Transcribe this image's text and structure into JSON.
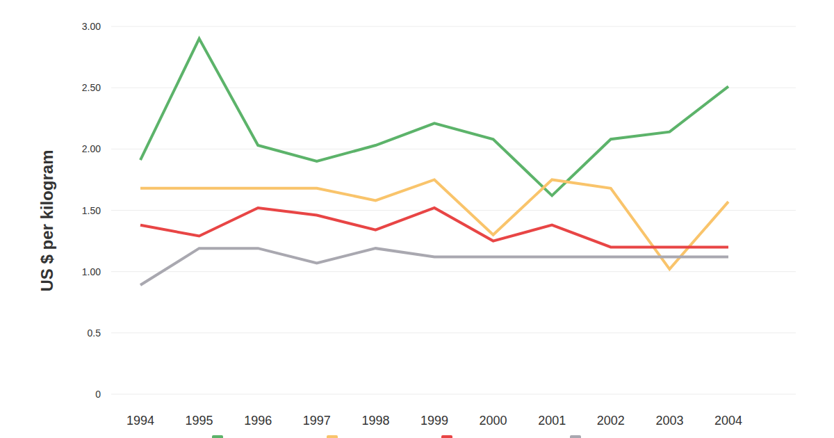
{
  "chart_data": {
    "type": "line",
    "y_label": "US $ per kilogram",
    "categories": [
      "1994",
      "1995",
      "1996",
      "1997",
      "1998",
      "1999",
      "2000",
      "2001",
      "2002",
      "2003",
      "2004"
    ],
    "series": [
      {
        "color": "#5cb36a",
        "values": [
          1.91,
          2.9,
          2.03,
          1.9,
          2.03,
          2.21,
          2.08,
          1.62,
          2.08,
          2.14,
          2.51
        ]
      },
      {
        "color": "#f9c46b",
        "values": [
          1.68,
          1.68,
          1.68,
          1.68,
          1.58,
          1.75,
          1.3,
          1.75,
          1.68,
          1.02,
          1.57
        ]
      },
      {
        "color": "#e84545",
        "values": [
          1.38,
          1.29,
          1.52,
          1.46,
          1.34,
          1.52,
          1.25,
          1.38,
          1.2,
          1.2,
          1.2
        ]
      },
      {
        "color": "#a9a8b0",
        "values": [
          0.89,
          1.19,
          1.19,
          1.07,
          1.19,
          1.12,
          1.12,
          1.12,
          1.12,
          1.12,
          1.12
        ]
      }
    ],
    "ylim": [
      0,
      3
    ],
    "yticks": [
      0,
      0.5,
      {
        "value": 1,
        "label": "1.00"
      },
      {
        "value": 1.5,
        "label": "1.50"
      },
      {
        "value": 2,
        "label": "2.00"
      },
      {
        "value": 2.5,
        "label": "2.50"
      },
      {
        "value": 3,
        "label": "3.00"
      }
    ],
    "grid": true,
    "legend": "bottom"
  }
}
